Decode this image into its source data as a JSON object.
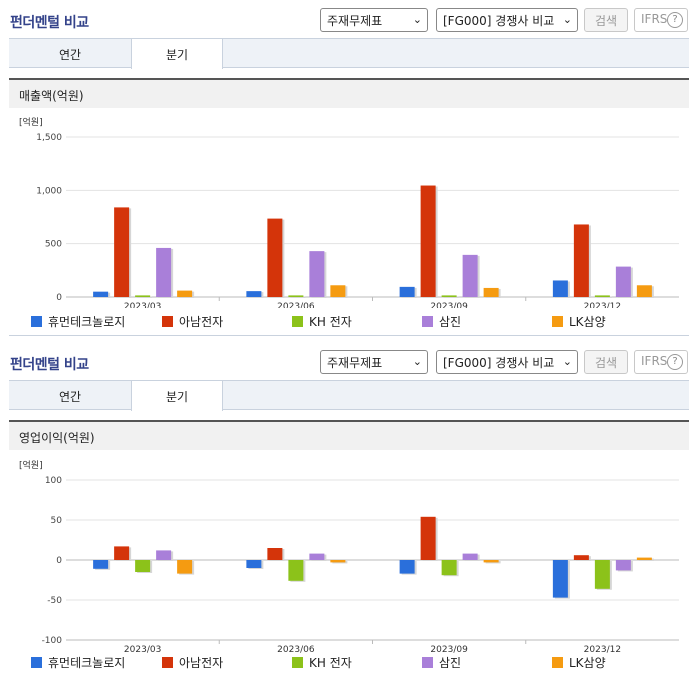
{
  "panels": [
    {
      "title": "펀더멘털 비교",
      "select_report": "주재무제표",
      "select_peer": "[FG000] 경쟁사 비교",
      "search_label": "검색",
      "ifrs_label": "IFRS",
      "help_glyph": "?",
      "tabs": [
        "연간",
        "분기"
      ],
      "active_tab": "분기",
      "metric_label": "매출액(억원)"
    },
    {
      "title": "펀더멘털 비교",
      "select_report": "주재무제표",
      "select_peer": "[FG000] 경쟁사 비교",
      "search_label": "검색",
      "ifrs_label": "IFRS",
      "help_glyph": "?",
      "tabs": [
        "연간",
        "분기"
      ],
      "active_tab": "분기",
      "metric_label": "영업이익(억원)"
    }
  ],
  "legend": [
    {
      "name": "휴먼테크놀로지",
      "color": "#2a6fdb"
    },
    {
      "name": "아남전자",
      "color": "#d4340a"
    },
    {
      "name": "KH 전자",
      "color": "#8cc21a"
    },
    {
      "name": "삼진",
      "color": "#a97fd9"
    },
    {
      "name": "LK삼양",
      "color": "#f59b11"
    }
  ],
  "chart_data": [
    {
      "type": "bar",
      "ylabel": "[억원]",
      "ylim": [
        0,
        1500
      ],
      "yticks": [
        0,
        500,
        1000,
        1500
      ],
      "ytick_labels": [
        "0",
        "500",
        "1,000",
        "1,500"
      ],
      "categories": [
        "2023/03",
        "2023/06",
        "2023/09",
        "2023/12"
      ],
      "series": [
        {
          "name": "휴먼테크놀로지",
          "values": [
            50,
            55,
            95,
            155
          ]
        },
        {
          "name": "아남전자",
          "values": [
            840,
            735,
            1045,
            680
          ]
        },
        {
          "name": "KH 전자",
          "values": [
            15,
            15,
            15,
            15
          ]
        },
        {
          "name": "삼진",
          "values": [
            460,
            430,
            395,
            285
          ]
        },
        {
          "name": "LK삼양",
          "values": [
            60,
            110,
            85,
            110
          ]
        }
      ]
    },
    {
      "type": "bar",
      "ylabel": "[억원]",
      "ylim": [
        -100,
        100
      ],
      "yticks": [
        -100,
        -50,
        0,
        50,
        100
      ],
      "ytick_labels": [
        "-100",
        "-50",
        "0",
        "50",
        "100"
      ],
      "categories": [
        "2023/03",
        "2023/06",
        "2023/09",
        "2023/12"
      ],
      "series": [
        {
          "name": "휴먼테크놀로지",
          "values": [
            -11,
            -10,
            -17,
            -47
          ]
        },
        {
          "name": "아남전자",
          "values": [
            17,
            15,
            54,
            6
          ]
        },
        {
          "name": "KH 전자",
          "values": [
            -15,
            -26,
            -19,
            -36
          ]
        },
        {
          "name": "삼진",
          "values": [
            12,
            8,
            8,
            -13
          ]
        },
        {
          "name": "LK삼양",
          "values": [
            -17,
            -3,
            -3,
            3
          ]
        }
      ]
    }
  ]
}
